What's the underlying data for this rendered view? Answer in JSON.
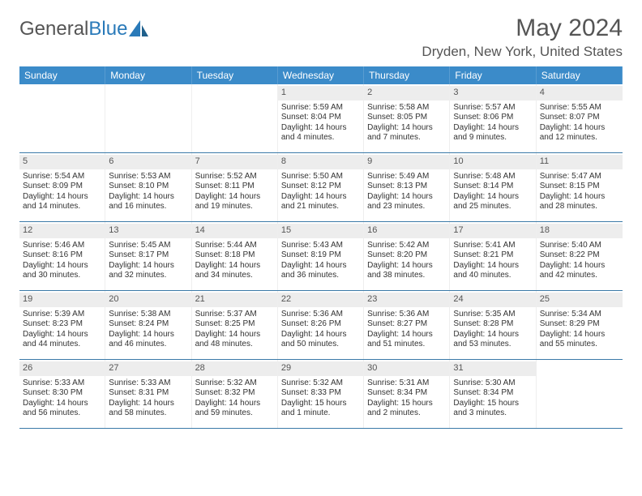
{
  "logo": {
    "text1": "General",
    "text2": "Blue"
  },
  "title": "May 2024",
  "location": "Dryden, New York, United States",
  "colors": {
    "header_bg": "#3b8bc9",
    "header_text": "#ffffff",
    "daynum_bg": "#ededed",
    "week_border": "#3b7aa8",
    "logo_blue": "#2a7ab9",
    "text": "#555555"
  },
  "dow": [
    "Sunday",
    "Monday",
    "Tuesday",
    "Wednesday",
    "Thursday",
    "Friday",
    "Saturday"
  ],
  "weeks": [
    [
      {
        "n": "",
        "sr": "",
        "ss": "",
        "dl": ""
      },
      {
        "n": "",
        "sr": "",
        "ss": "",
        "dl": ""
      },
      {
        "n": "",
        "sr": "",
        "ss": "",
        "dl": ""
      },
      {
        "n": "1",
        "sr": "Sunrise: 5:59 AM",
        "ss": "Sunset: 8:04 PM",
        "dl": "Daylight: 14 hours and 4 minutes."
      },
      {
        "n": "2",
        "sr": "Sunrise: 5:58 AM",
        "ss": "Sunset: 8:05 PM",
        "dl": "Daylight: 14 hours and 7 minutes."
      },
      {
        "n": "3",
        "sr": "Sunrise: 5:57 AM",
        "ss": "Sunset: 8:06 PM",
        "dl": "Daylight: 14 hours and 9 minutes."
      },
      {
        "n": "4",
        "sr": "Sunrise: 5:55 AM",
        "ss": "Sunset: 8:07 PM",
        "dl": "Daylight: 14 hours and 12 minutes."
      }
    ],
    [
      {
        "n": "5",
        "sr": "Sunrise: 5:54 AM",
        "ss": "Sunset: 8:09 PM",
        "dl": "Daylight: 14 hours and 14 minutes."
      },
      {
        "n": "6",
        "sr": "Sunrise: 5:53 AM",
        "ss": "Sunset: 8:10 PM",
        "dl": "Daylight: 14 hours and 16 minutes."
      },
      {
        "n": "7",
        "sr": "Sunrise: 5:52 AM",
        "ss": "Sunset: 8:11 PM",
        "dl": "Daylight: 14 hours and 19 minutes."
      },
      {
        "n": "8",
        "sr": "Sunrise: 5:50 AM",
        "ss": "Sunset: 8:12 PM",
        "dl": "Daylight: 14 hours and 21 minutes."
      },
      {
        "n": "9",
        "sr": "Sunrise: 5:49 AM",
        "ss": "Sunset: 8:13 PM",
        "dl": "Daylight: 14 hours and 23 minutes."
      },
      {
        "n": "10",
        "sr": "Sunrise: 5:48 AM",
        "ss": "Sunset: 8:14 PM",
        "dl": "Daylight: 14 hours and 25 minutes."
      },
      {
        "n": "11",
        "sr": "Sunrise: 5:47 AM",
        "ss": "Sunset: 8:15 PM",
        "dl": "Daylight: 14 hours and 28 minutes."
      }
    ],
    [
      {
        "n": "12",
        "sr": "Sunrise: 5:46 AM",
        "ss": "Sunset: 8:16 PM",
        "dl": "Daylight: 14 hours and 30 minutes."
      },
      {
        "n": "13",
        "sr": "Sunrise: 5:45 AM",
        "ss": "Sunset: 8:17 PM",
        "dl": "Daylight: 14 hours and 32 minutes."
      },
      {
        "n": "14",
        "sr": "Sunrise: 5:44 AM",
        "ss": "Sunset: 8:18 PM",
        "dl": "Daylight: 14 hours and 34 minutes."
      },
      {
        "n": "15",
        "sr": "Sunrise: 5:43 AM",
        "ss": "Sunset: 8:19 PM",
        "dl": "Daylight: 14 hours and 36 minutes."
      },
      {
        "n": "16",
        "sr": "Sunrise: 5:42 AM",
        "ss": "Sunset: 8:20 PM",
        "dl": "Daylight: 14 hours and 38 minutes."
      },
      {
        "n": "17",
        "sr": "Sunrise: 5:41 AM",
        "ss": "Sunset: 8:21 PM",
        "dl": "Daylight: 14 hours and 40 minutes."
      },
      {
        "n": "18",
        "sr": "Sunrise: 5:40 AM",
        "ss": "Sunset: 8:22 PM",
        "dl": "Daylight: 14 hours and 42 minutes."
      }
    ],
    [
      {
        "n": "19",
        "sr": "Sunrise: 5:39 AM",
        "ss": "Sunset: 8:23 PM",
        "dl": "Daylight: 14 hours and 44 minutes."
      },
      {
        "n": "20",
        "sr": "Sunrise: 5:38 AM",
        "ss": "Sunset: 8:24 PM",
        "dl": "Daylight: 14 hours and 46 minutes."
      },
      {
        "n": "21",
        "sr": "Sunrise: 5:37 AM",
        "ss": "Sunset: 8:25 PM",
        "dl": "Daylight: 14 hours and 48 minutes."
      },
      {
        "n": "22",
        "sr": "Sunrise: 5:36 AM",
        "ss": "Sunset: 8:26 PM",
        "dl": "Daylight: 14 hours and 50 minutes."
      },
      {
        "n": "23",
        "sr": "Sunrise: 5:36 AM",
        "ss": "Sunset: 8:27 PM",
        "dl": "Daylight: 14 hours and 51 minutes."
      },
      {
        "n": "24",
        "sr": "Sunrise: 5:35 AM",
        "ss": "Sunset: 8:28 PM",
        "dl": "Daylight: 14 hours and 53 minutes."
      },
      {
        "n": "25",
        "sr": "Sunrise: 5:34 AM",
        "ss": "Sunset: 8:29 PM",
        "dl": "Daylight: 14 hours and 55 minutes."
      }
    ],
    [
      {
        "n": "26",
        "sr": "Sunrise: 5:33 AM",
        "ss": "Sunset: 8:30 PM",
        "dl": "Daylight: 14 hours and 56 minutes."
      },
      {
        "n": "27",
        "sr": "Sunrise: 5:33 AM",
        "ss": "Sunset: 8:31 PM",
        "dl": "Daylight: 14 hours and 58 minutes."
      },
      {
        "n": "28",
        "sr": "Sunrise: 5:32 AM",
        "ss": "Sunset: 8:32 PM",
        "dl": "Daylight: 14 hours and 59 minutes."
      },
      {
        "n": "29",
        "sr": "Sunrise: 5:32 AM",
        "ss": "Sunset: 8:33 PM",
        "dl": "Daylight: 15 hours and 1 minute."
      },
      {
        "n": "30",
        "sr": "Sunrise: 5:31 AM",
        "ss": "Sunset: 8:34 PM",
        "dl": "Daylight: 15 hours and 2 minutes."
      },
      {
        "n": "31",
        "sr": "Sunrise: 5:30 AM",
        "ss": "Sunset: 8:34 PM",
        "dl": "Daylight: 15 hours and 3 minutes."
      },
      {
        "n": "",
        "sr": "",
        "ss": "",
        "dl": ""
      }
    ]
  ]
}
